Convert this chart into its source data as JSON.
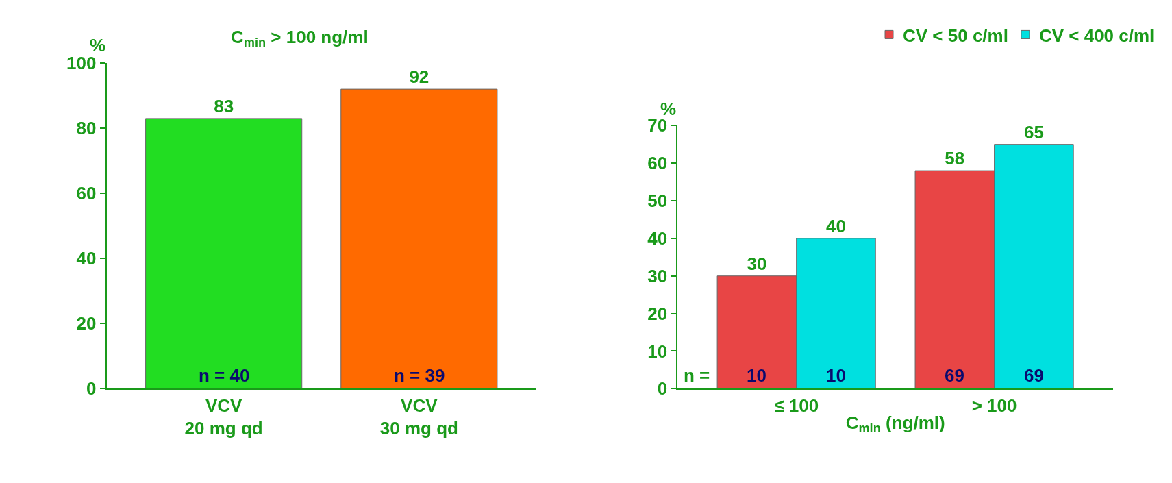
{
  "chart_data": [
    {
      "type": "bar",
      "title": "C$_{min}$ > 100 ng/ml",
      "ylabel": "%",
      "categories": [
        "VCV\n20 mg qd",
        "VCV\n30 mg qd"
      ],
      "values": [
        83,
        92
      ],
      "colors": [
        "#22dd22",
        "#ff6a00"
      ],
      "ylim": [
        0,
        100
      ],
      "yticks": [
        0,
        20,
        40,
        60,
        80,
        100
      ],
      "data_labels": true,
      "legend": false,
      "annotations": [
        "n = 40",
        "n = 39"
      ]
    },
    {
      "type": "bar",
      "ylabel": "%",
      "xlabel": "C$_{min}$ (ng/ml)",
      "categories": [
        "≤ 100",
        "> 100"
      ],
      "series": [
        {
          "name": "CV < 50 c/ml",
          "color": "#e84545",
          "values": [
            30,
            58
          ]
        },
        {
          "name": "CV < 400 c/ml",
          "color": "#00e0e0",
          "values": [
            40,
            65
          ]
        }
      ],
      "ylim": [
        0,
        70
      ],
      "yticks": [
        0,
        10,
        20,
        30,
        40,
        50,
        60,
        70
      ],
      "data_labels": true,
      "legend": "top right",
      "annotations": [
        "n =",
        "10",
        "10",
        "69",
        "69"
      ]
    }
  ]
}
